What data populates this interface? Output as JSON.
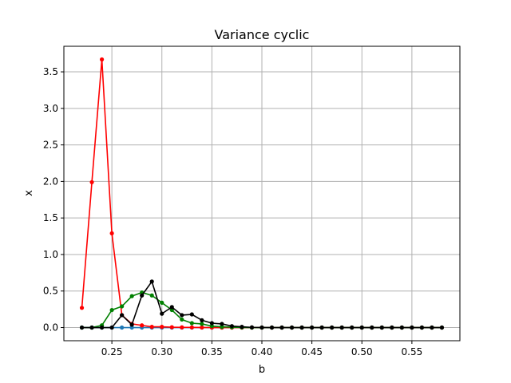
{
  "chart_data": {
    "type": "line",
    "title": "Variance cyclic",
    "xlabel": "b",
    "ylabel": "x",
    "xlim": [
      0.202,
      0.598
    ],
    "ylim": [
      -0.18,
      3.85
    ],
    "xticks": [
      0.25,
      0.3,
      0.35,
      0.4,
      0.45,
      0.5,
      0.55
    ],
    "xtick_labels": [
      "0.25",
      "0.30",
      "0.35",
      "0.40",
      "0.45",
      "0.50",
      "0.55"
    ],
    "yticks": [
      0.0,
      0.5,
      1.0,
      1.5,
      2.0,
      2.5,
      3.0,
      3.5
    ],
    "ytick_labels": [
      "0.0",
      "0.5",
      "1.0",
      "1.5",
      "2.0",
      "2.5",
      "3.0",
      "3.5"
    ],
    "grid": true,
    "x": [
      0.22,
      0.23,
      0.24,
      0.25,
      0.26,
      0.27,
      0.28,
      0.29,
      0.3,
      0.31,
      0.32,
      0.33,
      0.34,
      0.35,
      0.36,
      0.37,
      0.38,
      0.39,
      0.4,
      0.41,
      0.42,
      0.43,
      0.44,
      0.45,
      0.46,
      0.47,
      0.48,
      0.49,
      0.5,
      0.51,
      0.52,
      0.53,
      0.54,
      0.55,
      0.56,
      0.57,
      0.58
    ],
    "series": [
      {
        "color": "#1f77b4",
        "values": [
          0,
          0,
          0,
          0,
          0,
          0,
          0,
          0,
          0,
          0,
          0,
          0,
          0,
          0,
          0,
          0,
          0,
          0,
          0,
          0,
          0,
          0,
          0,
          0,
          0,
          0,
          0,
          0,
          0,
          0,
          0,
          0,
          0,
          0,
          0,
          0,
          0
        ]
      },
      {
        "color": "#ff0000",
        "values": [
          0.27,
          1.99,
          3.67,
          1.29,
          0.17,
          0.05,
          0.03,
          0.01,
          0.01,
          0.005,
          0.003,
          0.002,
          0.001,
          0,
          0,
          0,
          0,
          0,
          0,
          0,
          0,
          0,
          0,
          0,
          0,
          0,
          0,
          0,
          0,
          0,
          0,
          0,
          0,
          0,
          0,
          0,
          0
        ]
      },
      {
        "color": "#008000",
        "values": [
          0,
          0,
          0.03,
          0.24,
          0.29,
          0.43,
          0.48,
          0.44,
          0.34,
          0.24,
          0.11,
          0.06,
          0.05,
          0.02,
          0.01,
          0.005,
          0.002,
          0,
          0,
          0,
          0,
          0,
          0,
          0,
          0,
          0,
          0,
          0,
          0,
          0,
          0,
          0,
          0,
          0,
          0,
          0,
          0
        ]
      },
      {
        "color": "#000000",
        "values": [
          0,
          0,
          0,
          0,
          0.17,
          0.04,
          0.44,
          0.63,
          0.19,
          0.28,
          0.17,
          0.18,
          0.1,
          0.06,
          0.05,
          0.02,
          0.01,
          0.003,
          0.001,
          0,
          0,
          0,
          0,
          0,
          0,
          0,
          0,
          0,
          0,
          0,
          0,
          0,
          0,
          0,
          0,
          0,
          0
        ]
      }
    ]
  }
}
